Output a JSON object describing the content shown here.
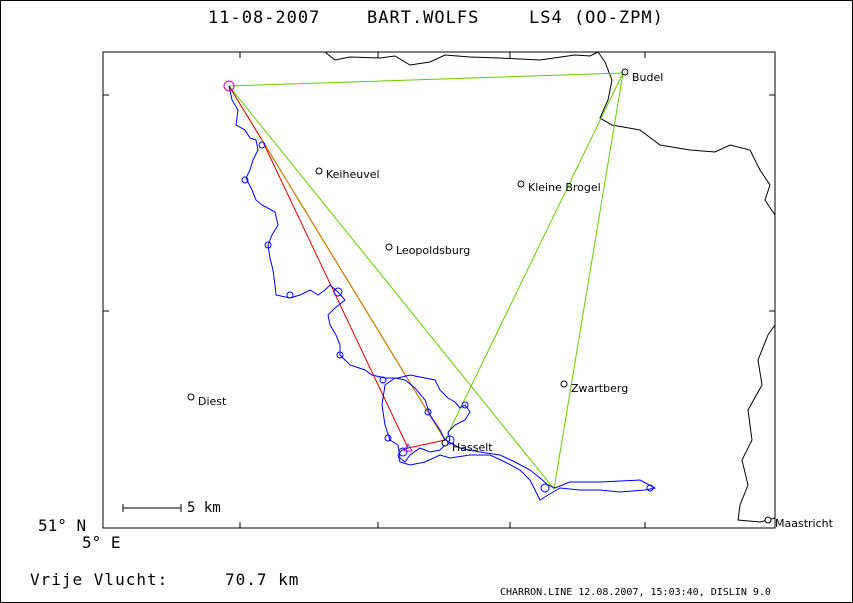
{
  "header": {
    "date": "11-08-2007",
    "pilot": "BART.WOLFS",
    "aircraft": "LS4 (OO-ZPM)"
  },
  "map": {
    "towns": [
      {
        "name": "Budel",
        "key": "budel"
      },
      {
        "name": "Keiheuvel",
        "key": "keiheuvel"
      },
      {
        "name": "Kleine Brogel",
        "key": "kleine-brogel"
      },
      {
        "name": "Leopoldsburg",
        "key": "leopoldsburg"
      },
      {
        "name": "Zwartberg",
        "key": "zwartberg"
      },
      {
        "name": "Diest",
        "key": "diest"
      },
      {
        "name": "Hasselt",
        "key": "hasselt"
      },
      {
        "name": "Maastricht",
        "key": "maastricht"
      }
    ],
    "scale_bar_label": "5 km",
    "lat_label": "51° N",
    "lon_label": "5° E",
    "colors": {
      "track": "#0000ff",
      "task_lines": "#66cc00",
      "optimized_route": "#dd0000",
      "start_marker": "#cc00cc",
      "border": "#000000"
    }
  },
  "summary": {
    "label": "Vrije Vlucht:",
    "value": "70.7 km"
  },
  "footer": "CHARRON.LINE 12.08.2007, 15:03:40, DISLIN 9.0"
}
